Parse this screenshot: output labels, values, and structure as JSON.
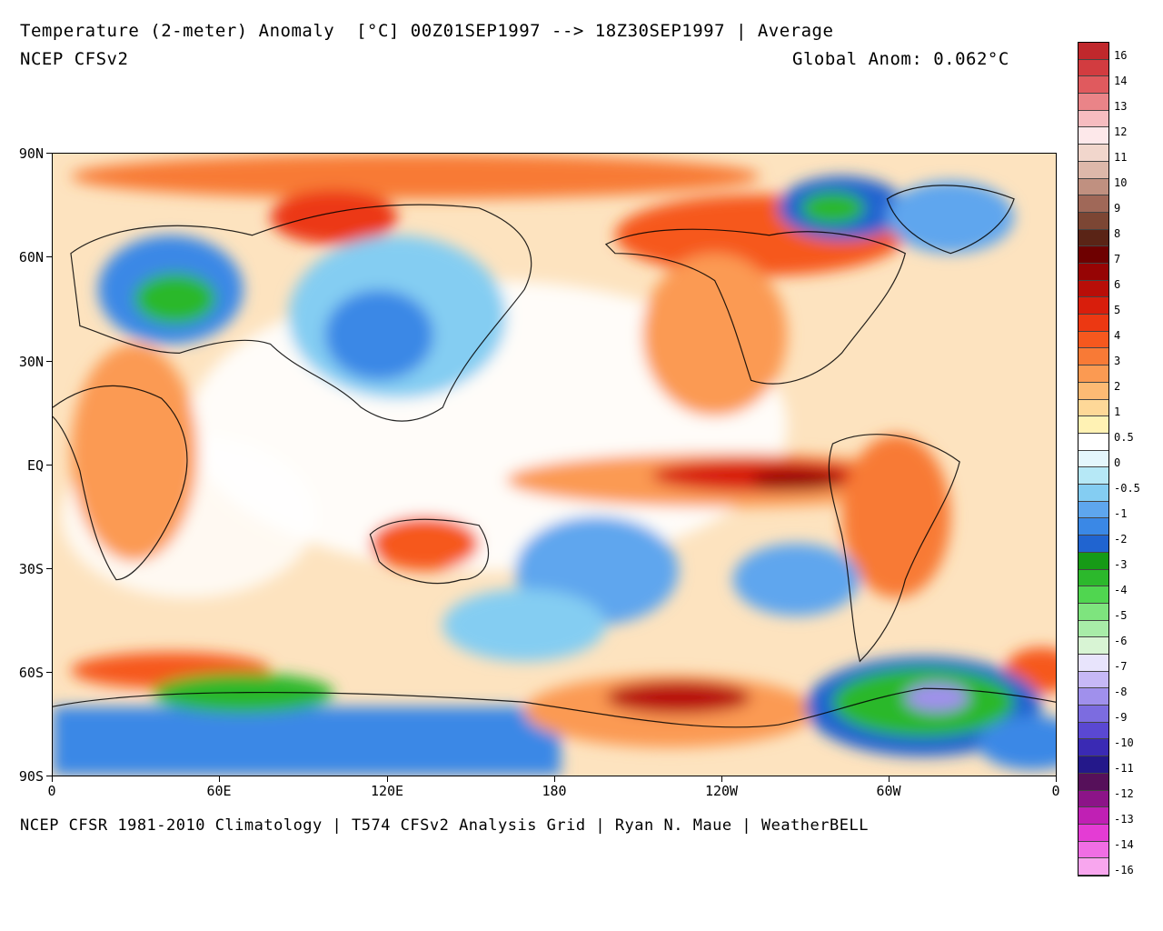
{
  "header": {
    "title": "Temperature (2-meter) Anomaly  [°C] 00Z01SEP1997 --> 18Z30SEP1997 | Average",
    "model": "NCEP CFSv2",
    "global_anomaly": "Global Anom: 0.062°C"
  },
  "footer": {
    "credits": "NCEP CFSR 1981-2010 Climatology | T574 CFSv2 Analysis Grid | Ryan N. Maue | WeatherBELL"
  },
  "map": {
    "lat_labels": [
      "90N",
      "60N",
      "30N",
      "EQ",
      "30S",
      "60S",
      "90S"
    ],
    "lon_labels": [
      "0",
      "60E",
      "120E",
      "180",
      "120W",
      "60W",
      "0"
    ]
  },
  "legend": {
    "labels": [
      "16",
      "14",
      "13",
      "12",
      "11",
      "10",
      "9",
      "8",
      "7",
      "6",
      "5",
      "4",
      "3",
      "2",
      "1",
      "0.5",
      "0",
      "-0.5",
      "-1",
      "-2",
      "-3",
      "-4",
      "-5",
      "-6",
      "-7",
      "-8",
      "-9",
      "-10",
      "-11",
      "-12",
      "-13",
      "-14",
      "-16"
    ],
    "colors": [
      "#c0282c",
      "#d23c40",
      "#e05a5e",
      "#ea8488",
      "#f6bcc0",
      "#fde8ea",
      "#f1d6cc",
      "#ddb8aa",
      "#c09080",
      "#a06858",
      "#7c4634",
      "#5a2416",
      "#6e0000",
      "#960404",
      "#b80e08",
      "#d81e0c",
      "#ec3812",
      "#f6581e",
      "#f87a36",
      "#fb9a52",
      "#fdba74",
      "#fed898",
      "#fff2b4",
      "#ffffff",
      "#e4f6fc",
      "#b6e8f6",
      "#84cdf2",
      "#5ea6ee",
      "#3a88e6",
      "#2064d0",
      "#169a16",
      "#2cb82c",
      "#50d650",
      "#7ee47e",
      "#a8eca8",
      "#d8f4d4",
      "#e8e4fc",
      "#c6b8f6",
      "#a090ec",
      "#7c6ce0",
      "#5a48d2",
      "#3a2ab4",
      "#24188a",
      "#56105a",
      "#8c1488",
      "#c020b4",
      "#e43cd4",
      "#f06ee4",
      "#f8a6ee"
    ],
    "warm_colors": [
      "#fff2b4",
      "#fed898",
      "#fdba74",
      "#fb9a52",
      "#f87a36",
      "#f6581e",
      "#ec3812",
      "#d81e0c",
      "#b80e08",
      "#960404",
      "#6e0000"
    ],
    "cool_colors": [
      "#ffffff",
      "#e4f6fc",
      "#b6e8f6",
      "#84cdf2",
      "#5ea6ee",
      "#3a88e6",
      "#2064d0",
      "#169a16",
      "#2cb82c",
      "#50d650",
      "#7ee47e"
    ]
  }
}
